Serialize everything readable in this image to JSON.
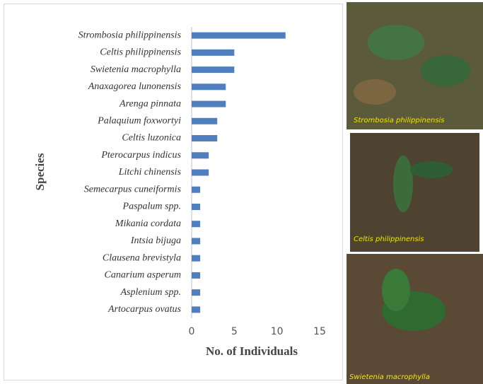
{
  "chart_data": {
    "type": "bar",
    "orientation": "horizontal",
    "categories": [
      "Strombosia philippinensis",
      "Celtis philippinensis",
      "Swietenia macrophylla",
      "Anaxagorea lunonensis",
      "Arenga pinnata",
      "Palaquium foxwortyi",
      "Celtis luzonica",
      "Pterocarpus indicus",
      "Litchi chinensis",
      "Semecarpus cuneiformis",
      "Paspalum spp.",
      "Mikania cordata",
      "Intsia bijuga",
      "Clausena brevistyla",
      "Canarium asperum",
      "Asplenium spp.",
      "Artocarpus ovatus"
    ],
    "values": [
      11,
      5,
      5,
      4,
      4,
      3,
      3,
      2,
      2,
      1,
      1,
      1,
      1,
      1,
      1,
      1,
      1
    ],
    "color": "#4f7fbf",
    "xlabel": "No. of Individuals",
    "ylabel": "Species",
    "xlim": [
      0,
      15
    ],
    "xticks": [
      0,
      5,
      10,
      15
    ],
    "grid": false
  },
  "photo_captions": [
    "Strombosia philippinensis",
    "Celtis philippinensis",
    "Swietenia macrophylla"
  ]
}
